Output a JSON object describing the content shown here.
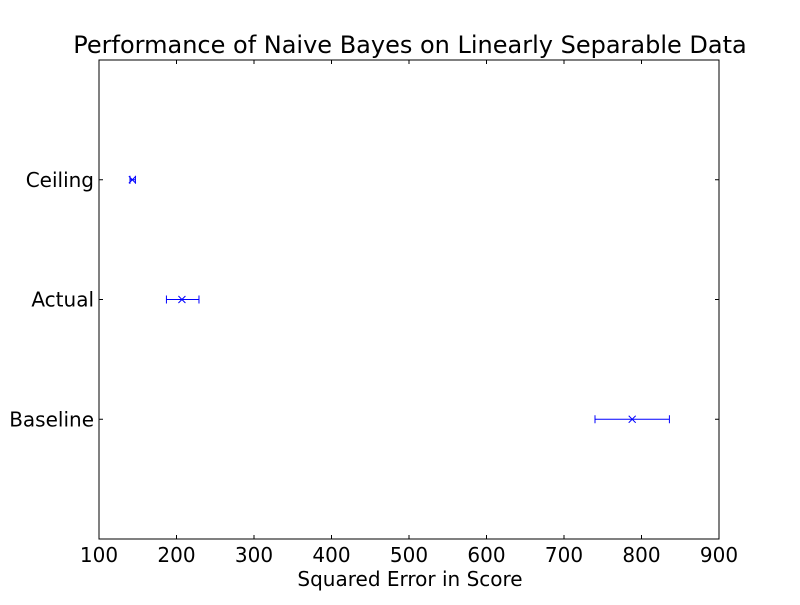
{
  "chart_data": {
    "type": "errorbar",
    "title": "Performance of Naive Bayes on Linearly Separable Data",
    "xlabel": "Squared Error in Score",
    "ylabel": "",
    "xlim": [
      100,
      900
    ],
    "xticks": [
      "100",
      "200",
      "300",
      "400",
      "500",
      "600",
      "700",
      "800",
      "900"
    ],
    "categories": [
      "Ceiling",
      "Actual",
      "Baseline"
    ],
    "points": [
      {
        "category": "Ceiling",
        "value": 143,
        "lower": 140,
        "upper": 147
      },
      {
        "category": "Actual",
        "value": 207,
        "lower": 187,
        "upper": 229
      },
      {
        "category": "Baseline",
        "value": 788,
        "lower": 740,
        "upper": 836
      }
    ],
    "marker": "x",
    "color": "#0000ff",
    "grid": false,
    "legend": "none"
  }
}
